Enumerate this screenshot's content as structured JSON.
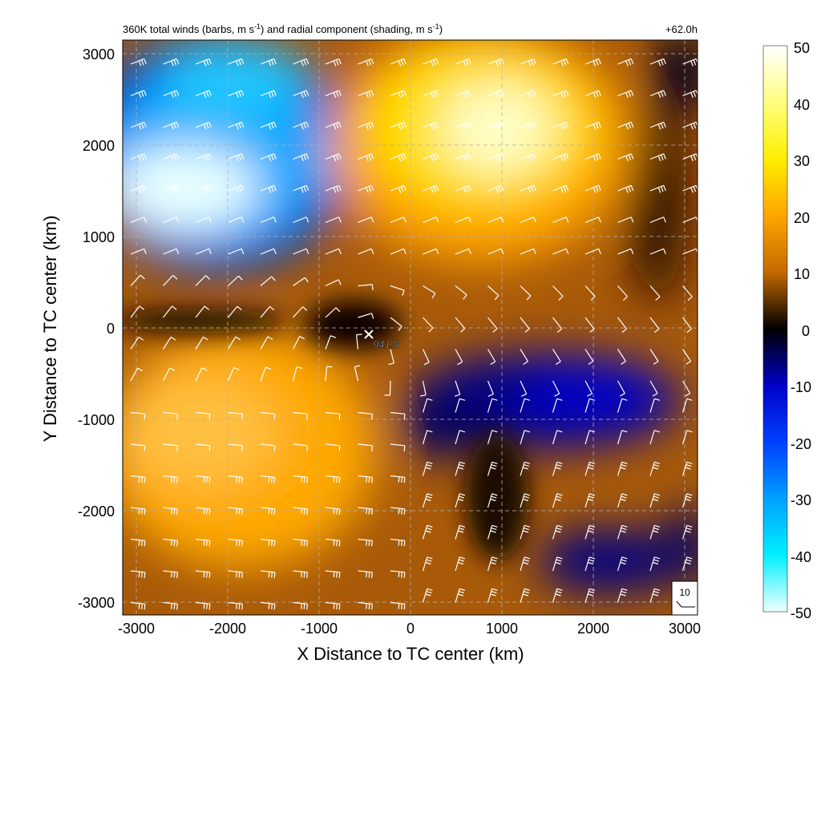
{
  "chart_data": {
    "type": "heatmap",
    "title_main": "360K total winds (barbs, m s",
    "title_sup1": "-1",
    "title_mid": ") and radial component (shading, m s",
    "title_sup2": "-1",
    "title_end": ")",
    "time_label": "+62.0h",
    "xlabel": "X Distance to TC center (km)",
    "ylabel": "Y Distance to TC center (km)",
    "xlim": [
      -3150,
      3150
    ],
    "ylim": [
      -3150,
      3150
    ],
    "xticks": [
      "-3000",
      "-2000",
      "-1000",
      "0",
      "1000",
      "2000",
      "3000"
    ],
    "yticks": [
      "3000",
      "2000",
      "1000",
      "0",
      "-1000",
      "-2000",
      "-3000"
    ],
    "colorbar_ticks": [
      "50",
      "40",
      "30",
      "20",
      "10",
      "0",
      "-10",
      "-20",
      "-30",
      "-40",
      "-50"
    ],
    "colorbar_range": [
      -50,
      50
    ],
    "grid": true,
    "center_marker_label": "941.8",
    "center_position_km": [
      -450,
      0
    ],
    "reference_barb_label": "10",
    "colors": {
      "neg_max": "#f0ffff",
      "neg_high": "#00e5ff",
      "neg_mid": "#0080ff",
      "neg_low": "#0000cc",
      "zero": "#000000",
      "pos_low": "#8a4a00",
      "pos_mid": "#ff9900",
      "pos_high": "#ffee00",
      "pos_max": "#ffffff"
    }
  }
}
